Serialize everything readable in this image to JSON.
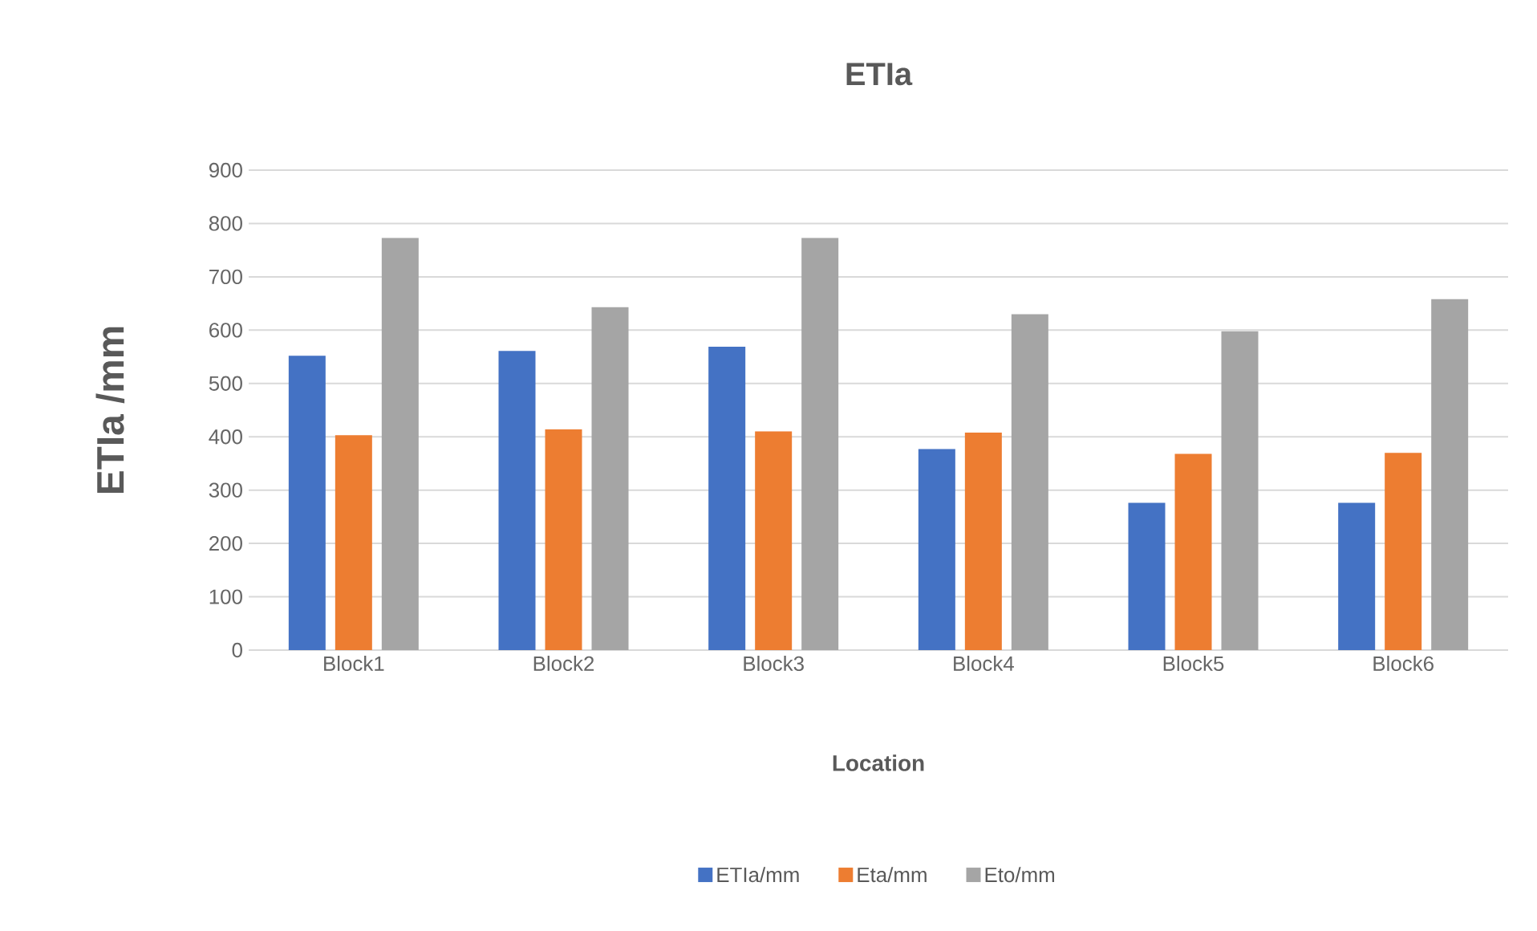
{
  "chart_data": {
    "type": "bar",
    "title": "ETIa",
    "xlabel": "Location",
    "ylabel": "ETIa /mm",
    "categories": [
      "Block1",
      "Block2",
      "Block3",
      "Block4",
      "Block5",
      "Block6"
    ],
    "series": [
      {
        "name": "ETIa/mm",
        "color": "#4472c4",
        "values": [
          552,
          561,
          569,
          377,
          276,
          276
        ]
      },
      {
        "name": "Eta/mm",
        "color": "#ed7d31",
        "values": [
          403,
          414,
          410,
          408,
          368,
          370
        ]
      },
      {
        "name": "Eto/mm",
        "color": "#a5a5a5",
        "values": [
          773,
          643,
          773,
          630,
          598,
          658
        ]
      }
    ],
    "ylim": [
      0,
      900
    ],
    "yticks": [
      0,
      100,
      200,
      300,
      400,
      500,
      600,
      700,
      800,
      900
    ],
    "grid": "y",
    "legend": "bottom"
  }
}
